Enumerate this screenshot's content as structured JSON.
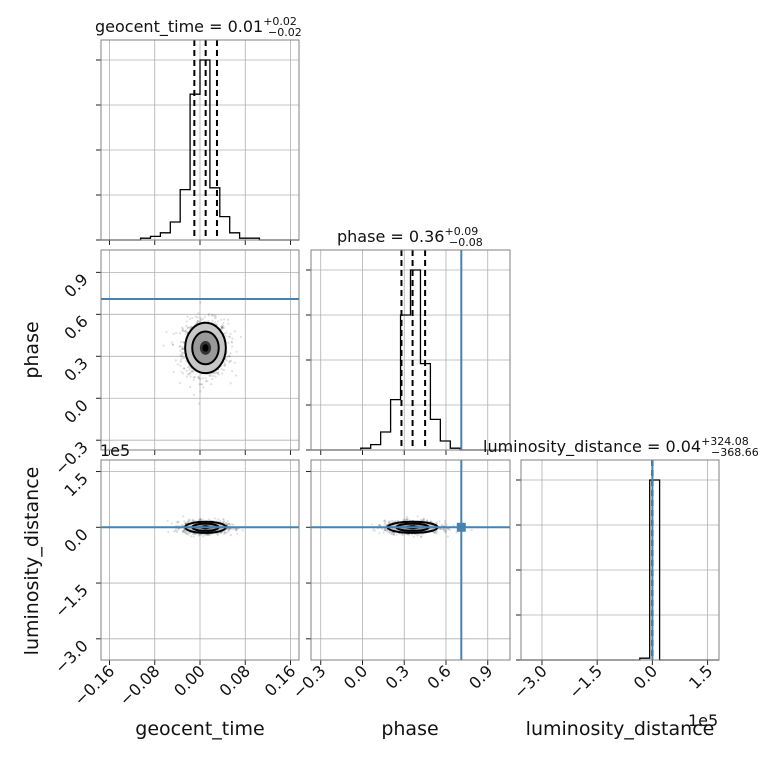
{
  "chart_data": {
    "type": "corner",
    "parameters": [
      "geocent_time",
      "phase",
      "luminosity_distance"
    ],
    "axis_labels": [
      "geocent_time",
      "phase",
      "luminosity_distance"
    ],
    "ranges": {
      "geocent_time": [
        -0.175,
        0.175
      ],
      "phase": [
        -0.37,
        1.06
      ],
      "luminosity_distance": [
        -357000,
        181000
      ]
    },
    "ticks": {
      "geocent_time": {
        "values": [
          -0.16,
          -0.08,
          0.0,
          0.08,
          0.16
        ],
        "labels": [
          "−0.16",
          "−0.08",
          "0.00",
          "0.08",
          "0.16"
        ]
      },
      "phase": {
        "values": [
          -0.3,
          0.0,
          0.3,
          0.6,
          0.9
        ],
        "labels": [
          "−0.3",
          "0.0",
          "0.3",
          "0.6",
          "0.9"
        ]
      },
      "luminosity_distance": {
        "values": [
          -300000,
          -150000,
          0,
          150000
        ],
        "labels": [
          "−3.0",
          "−1.5",
          "0.0",
          "1.5"
        ]
      }
    },
    "axis_offset_text": {
      "luminosity_distance": "1e5"
    },
    "truths": {
      "geocent_time": null,
      "phase": 0.71,
      "luminosity_distance": 0
    },
    "truth_color": "#4682b4",
    "titles": [
      {
        "parameter": "geocent_time",
        "text": "geocent_time = 0.01",
        "plus": "+0.02",
        "minus": "−0.02"
      },
      {
        "parameter": "phase",
        "text": "phase = 0.36",
        "plus": "+0.09",
        "minus": "−0.08"
      },
      {
        "parameter": "luminosity_distance",
        "text": "luminosity_distance = 0.04",
        "plus": "+324.08",
        "minus": "−368.66"
      }
    ],
    "quantiles": {
      "geocent_time": [
        -0.01,
        0.01,
        0.03
      ],
      "phase": [
        0.28,
        0.36,
        0.45
      ],
      "luminosity_distance": [
        -368.62,
        0.04,
        324.12
      ]
    },
    "histograms": {
      "geocent_time": {
        "bin_edges": [
          -0.175,
          -0.1575,
          -0.14,
          -0.1225,
          -0.105,
          -0.0875,
          -0.07,
          -0.0525,
          -0.035,
          -0.0175,
          0.0,
          0.0175,
          0.035,
          0.0525,
          0.07,
          0.0875,
          0.105,
          0.1225,
          0.14,
          0.1575,
          0.175
        ],
        "counts": [
          0,
          0,
          0,
          0,
          1,
          2,
          4,
          10,
          28,
          81,
          100,
          29,
          13,
          4,
          1,
          1,
          0,
          0,
          0,
          0
        ]
      },
      "phase": {
        "bin_edges": [
          -0.37,
          -0.2985,
          -0.227,
          -0.1555,
          -0.084,
          -0.0125,
          0.059,
          0.1305,
          0.202,
          0.2735,
          0.345,
          0.4165,
          0.488,
          0.5595,
          0.631,
          0.7025,
          0.774,
          0.8455,
          0.917,
          0.9885,
          1.06
        ],
        "counts": [
          0,
          0,
          0,
          0,
          0,
          1,
          3,
          10,
          28,
          75,
          100,
          48,
          17,
          5,
          1,
          0,
          0,
          0,
          0,
          0
        ]
      },
      "luminosity_distance": {
        "bin_edges": [
          -357000,
          -330100,
          -303200,
          -276300,
          -249400,
          -222500,
          -195600,
          -168700,
          -141800,
          -114900,
          -88000,
          -61100,
          -34200,
          -7300,
          19600,
          46500,
          73400,
          100300,
          127200,
          154100,
          181000
        ],
        "counts": [
          0,
          0,
          0,
          0,
          0,
          0,
          0,
          0,
          0,
          0,
          0,
          0,
          1,
          100,
          0,
          0,
          0,
          0,
          0,
          0
        ]
      }
    },
    "scatter_pairs": [
      {
        "x": "geocent_time",
        "y": "phase"
      },
      {
        "x": "geocent_time",
        "y": "luminosity_distance"
      },
      {
        "x": "phase",
        "y": "luminosity_distance"
      }
    ],
    "distributions": {
      "geocent_time": {
        "mean": 0.0097,
        "sd": 0.018
      },
      "phase": {
        "mean": 0.36,
        "sd": 0.09
      },
      "luminosity_distance": {
        "mean": 0,
        "sd": 7500
      }
    }
  }
}
